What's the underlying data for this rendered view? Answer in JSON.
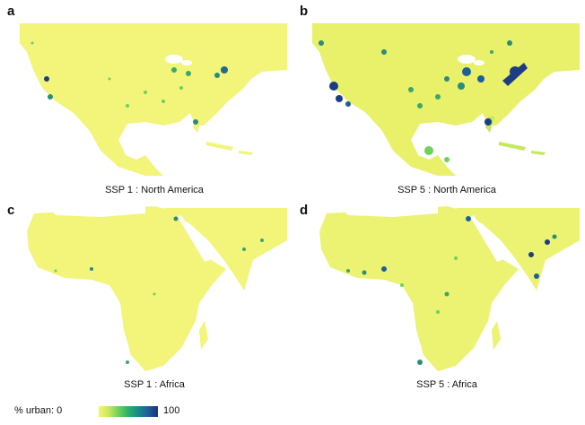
{
  "panels": [
    {
      "letter": "a",
      "caption": "SSP 1 : North America"
    },
    {
      "letter": "b",
      "caption": "SSP 5 : North America"
    },
    {
      "letter": "c",
      "caption": "SSP 1 : Africa"
    },
    {
      "letter": "d",
      "caption": "SSP 5 : Africa"
    }
  ],
  "legend": {
    "label": "% urban:",
    "min": "0",
    "max": "100"
  },
  "colors": {
    "land": "#f3f47a",
    "low": "#c5e85e",
    "mid": "#3aa86a",
    "high": "#1c3d86",
    "water": "#ffffff"
  }
}
